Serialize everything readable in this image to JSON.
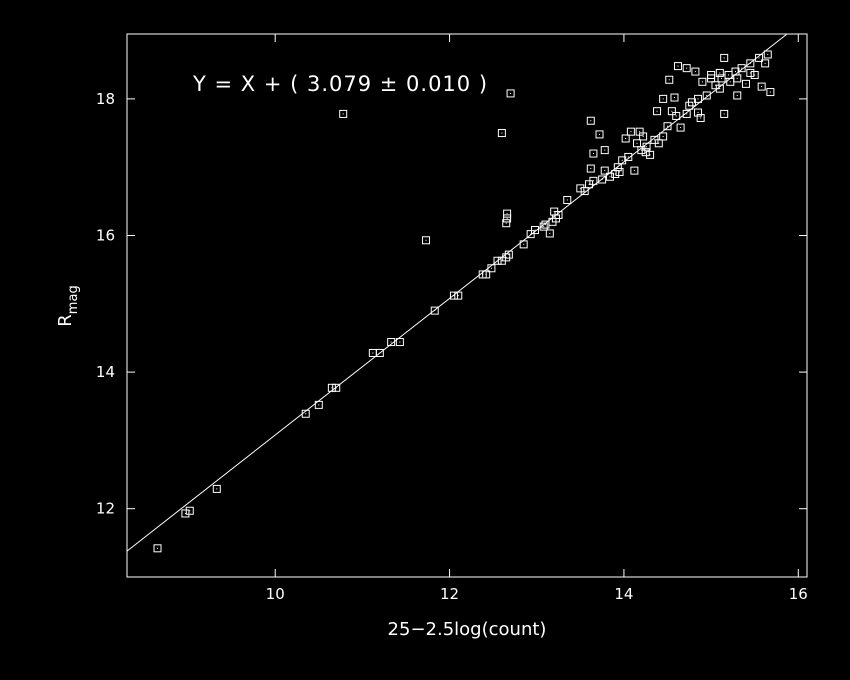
{
  "chart_data": {
    "type": "scatter",
    "title": "",
    "xlabel": "25−2.5log(count)",
    "ylabel_main": "R",
    "ylabel_sub": "mag",
    "annotation": "Y = X + ( 3.079 ± 0.010 )",
    "xlim": [
      8.3,
      16.1
    ],
    "ylim": [
      11.0,
      18.95
    ],
    "xticks": [
      10,
      12,
      14,
      16
    ],
    "yticks": [
      12,
      14,
      16,
      18
    ],
    "grid": false,
    "colors": {
      "background": "#000000",
      "foreground": "#ffffff"
    },
    "fit_line": {
      "slope": 1,
      "intercept": 3.079
    },
    "points": [
      [
        8.65,
        11.42
      ],
      [
        8.97,
        11.93
      ],
      [
        9.02,
        11.97
      ],
      [
        9.33,
        12.29
      ],
      [
        10.35,
        13.39
      ],
      [
        10.5,
        13.52
      ],
      [
        10.65,
        13.77
      ],
      [
        10.7,
        13.77
      ],
      [
        11.12,
        14.28
      ],
      [
        11.2,
        14.28
      ],
      [
        11.33,
        14.44
      ],
      [
        11.43,
        14.44
      ],
      [
        11.83,
        14.9
      ],
      [
        12.05,
        15.12
      ],
      [
        12.1,
        15.12
      ],
      [
        12.38,
        15.43
      ],
      [
        12.42,
        15.43
      ],
      [
        12.48,
        15.52
      ],
      [
        12.55,
        15.63
      ],
      [
        12.6,
        15.63
      ],
      [
        12.65,
        15.68
      ],
      [
        12.68,
        15.72
      ],
      [
        12.85,
        15.87
      ],
      [
        12.93,
        16.02
      ],
      [
        12.98,
        16.08
      ],
      [
        13.08,
        16.13
      ],
      [
        13.15,
        16.03
      ],
      [
        13.18,
        16.2
      ],
      [
        13.22,
        16.25
      ],
      [
        13.25,
        16.3
      ],
      [
        13.35,
        16.52
      ],
      [
        13.5,
        16.69
      ],
      [
        13.55,
        16.65
      ],
      [
        13.6,
        16.75
      ],
      [
        13.65,
        16.8
      ],
      [
        13.78,
        16.95
      ],
      [
        13.84,
        16.86
      ],
      [
        13.9,
        16.9
      ],
      [
        13.93,
        17.0
      ],
      [
        13.98,
        17.1
      ],
      [
        14.05,
        17.15
      ],
      [
        14.2,
        17.25
      ],
      [
        14.26,
        17.3
      ],
      [
        14.35,
        17.4
      ],
      [
        14.45,
        17.45
      ],
      [
        14.5,
        17.6
      ],
      [
        14.6,
        17.75
      ],
      [
        14.72,
        17.78
      ],
      [
        14.85,
        18.0
      ],
      [
        14.95,
        18.05
      ],
      [
        15.05,
        18.2
      ],
      [
        15.12,
        18.3
      ],
      [
        15.2,
        18.35
      ],
      [
        15.28,
        18.4
      ],
      [
        15.35,
        18.45
      ],
      [
        15.45,
        18.52
      ],
      [
        15.55,
        18.6
      ],
      [
        15.65,
        18.65
      ],
      [
        13.95,
        16.93
      ],
      [
        14.15,
        17.35
      ],
      [
        14.22,
        17.45
      ],
      [
        14.3,
        17.18
      ],
      [
        14.4,
        17.35
      ],
      [
        14.55,
        17.82
      ],
      [
        14.65,
        17.58
      ],
      [
        14.78,
        17.95
      ],
      [
        14.88,
        17.72
      ],
      [
        15.0,
        18.35
      ],
      [
        15.1,
        18.15
      ],
      [
        15.15,
        17.78
      ],
      [
        15.22,
        18.25
      ],
      [
        15.3,
        18.3
      ],
      [
        15.4,
        18.22
      ],
      [
        15.5,
        18.35
      ],
      [
        15.58,
        18.18
      ],
      [
        15.62,
        18.52
      ],
      [
        15.68,
        18.1
      ],
      [
        14.52,
        18.28
      ],
      [
        14.62,
        18.48
      ],
      [
        14.72,
        18.45
      ],
      [
        14.82,
        18.4
      ],
      [
        14.9,
        18.25
      ],
      [
        15.1,
        18.38
      ],
      [
        15.15,
        18.6
      ],
      [
        14.02,
        17.42
      ],
      [
        14.08,
        17.52
      ],
      [
        14.25,
        17.22
      ],
      [
        14.12,
        16.95
      ],
      [
        13.72,
        17.48
      ],
      [
        13.78,
        17.25
      ],
      [
        13.65,
        17.2
      ],
      [
        13.62,
        17.68
      ],
      [
        14.18,
        17.52
      ],
      [
        14.38,
        17.82
      ],
      [
        14.58,
        18.02
      ],
      [
        14.45,
        18.0
      ],
      [
        13.75,
        16.82
      ],
      [
        13.62,
        16.98
      ],
      [
        12.6,
        17.5
      ],
      [
        12.7,
        18.08
      ],
      [
        10.78,
        17.78
      ],
      [
        11.73,
        15.93
      ],
      [
        12.65,
        16.18
      ],
      [
        12.66,
        16.25
      ],
      [
        12.66,
        16.32
      ],
      [
        13.1,
        16.16
      ],
      [
        13.2,
        16.35
      ],
      [
        15.0,
        18.3
      ],
      [
        15.3,
        18.05
      ],
      [
        14.85,
        17.8
      ],
      [
        14.75,
        17.9
      ],
      [
        15.45,
        18.38
      ]
    ]
  }
}
